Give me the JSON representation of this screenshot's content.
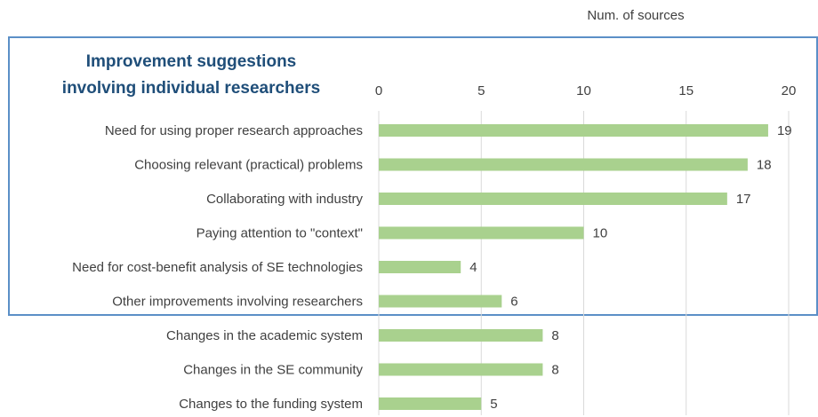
{
  "chart_data": {
    "type": "bar",
    "orientation": "horizontal",
    "title": [
      "Improvement suggestions",
      "involving individual researchers"
    ],
    "x_label": "Num. of sources",
    "categories": [
      "Need for using proper research approaches",
      "Choosing relevant (practical) problems",
      "Collaborating with industry",
      "Paying attention to \"context\"",
      "Need for cost-benefit analysis of SE technologies",
      "Other improvements involving researchers",
      "Changes in the academic system",
      "Changes in the SE community",
      "Changes to the funding system"
    ],
    "values": [
      19,
      18,
      17,
      10,
      4,
      6,
      8,
      8,
      5
    ],
    "color": "#a9d18e",
    "xlim": [
      0,
      20
    ],
    "xticks": [
      0,
      5,
      10,
      15,
      20
    ],
    "grid": true
  }
}
